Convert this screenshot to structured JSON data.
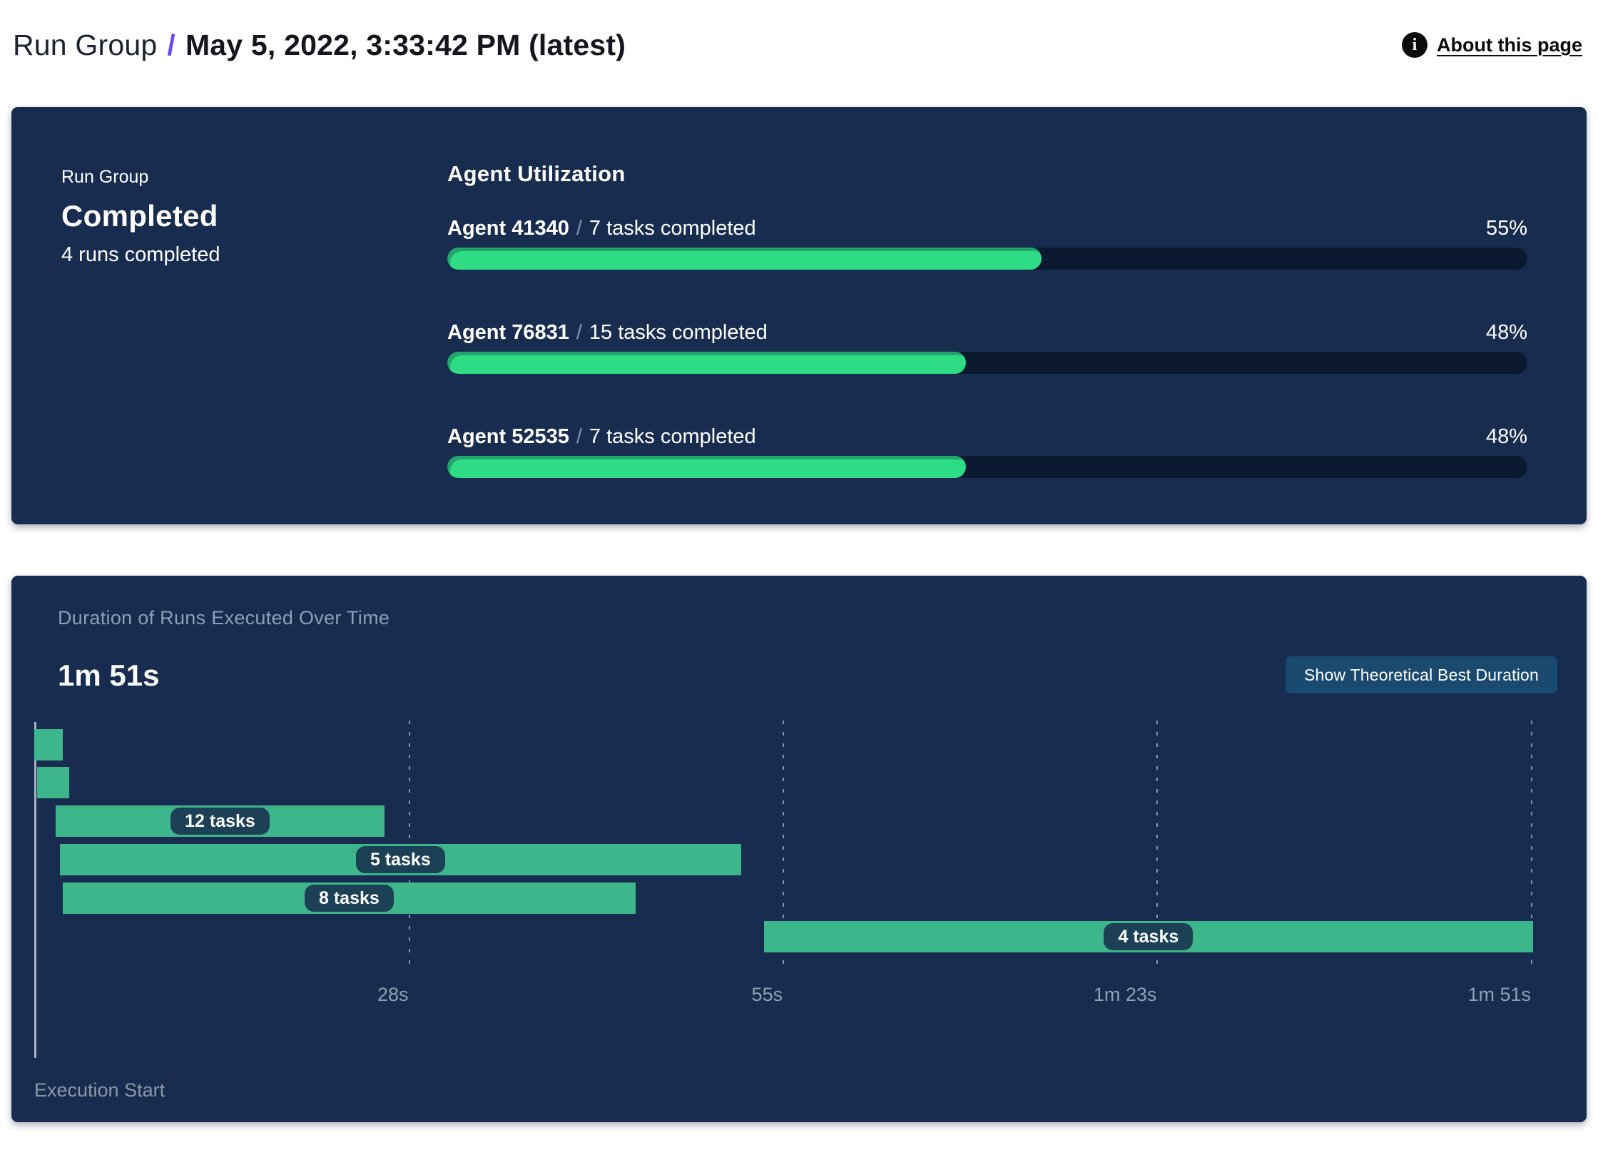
{
  "header": {
    "breadcrumb_root": "Run Group",
    "breadcrumb_separator": "/",
    "title": "May 5, 2022, 3:33:42 PM (latest)",
    "about_link": "About this page",
    "info_icon_glyph": "i"
  },
  "summary_card": {
    "label": "Run Group",
    "status": "Completed",
    "runs_completed": "4 runs completed"
  },
  "agent_utilization": {
    "title": "Agent Utilization",
    "separator": "/",
    "agents": [
      {
        "name": "Agent 41340",
        "tasks": "7 tasks completed",
        "percent": 55,
        "percent_label": "55%"
      },
      {
        "name": "Agent 76831",
        "tasks": "15 tasks completed",
        "percent": 48,
        "percent_label": "48%"
      },
      {
        "name": "Agent 52535",
        "tasks": "7 tasks completed",
        "percent": 48,
        "percent_label": "48%"
      }
    ]
  },
  "duration_panel": {
    "title": "Duration of Runs Executed Over Time",
    "total_duration": "1m 51s",
    "button_label": "Show Theoretical Best Duration",
    "axis_label": "Execution Start"
  },
  "chart_data": {
    "type": "gantt",
    "title": "Duration of Runs Executed Over Time",
    "total_duration_label": "1m 51s",
    "total_duration_s": 110.75,
    "x_ticks": [
      {
        "s": 27.69,
        "label": "28s"
      },
      {
        "s": 55.38,
        "label": "55s"
      },
      {
        "s": 83.06,
        "label": "1m 23s"
      },
      {
        "s": 110.75,
        "label": "1m 51s"
      }
    ],
    "bars": [
      {
        "start_s": 0.0,
        "end_s": 2.1,
        "label": null
      },
      {
        "start_s": 0.2,
        "end_s": 2.6,
        "label": null
      },
      {
        "start_s": 1.6,
        "end_s": 25.9,
        "label": "12 tasks"
      },
      {
        "start_s": 1.9,
        "end_s": 52.3,
        "label": "5 tasks"
      },
      {
        "start_s": 2.1,
        "end_s": 44.5,
        "label": "8 tasks"
      },
      {
        "start_s": 54.0,
        "end_s": 110.9,
        "label": "4 tasks"
      }
    ]
  },
  "colors": {
    "card_background": "#172c4f",
    "progress_green": "#2edc86",
    "progress_green_shade": "#23a56b",
    "gantt_green": "#3db68c",
    "pill_background": "#1c4156",
    "button_background": "#1b4a70",
    "track_background": "#0c1a31",
    "muted_text": "#8fa0b5",
    "breadcrumb_accent": "#6c4bf0"
  }
}
